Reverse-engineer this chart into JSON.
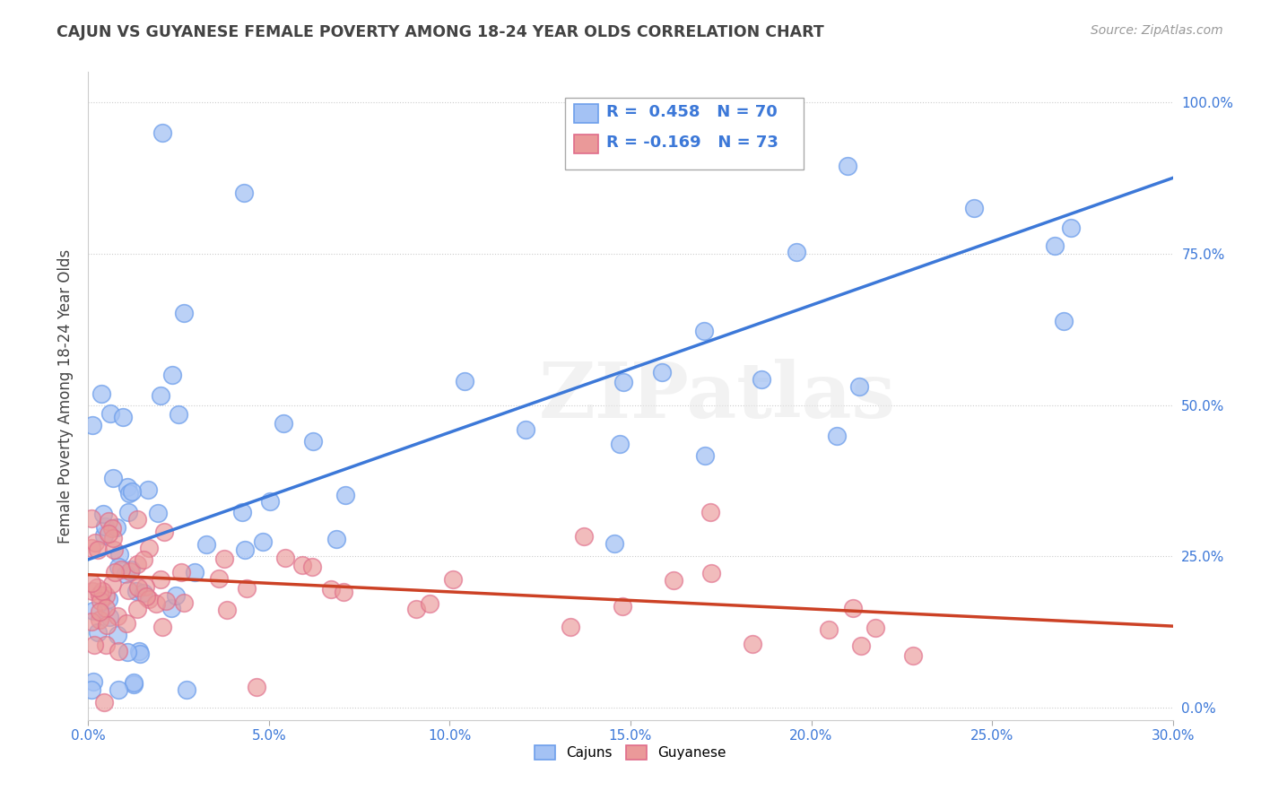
{
  "title": "CAJUN VS GUYANESE FEMALE POVERTY AMONG 18-24 YEAR OLDS CORRELATION CHART",
  "source": "Source: ZipAtlas.com",
  "ylabel": "Female Poverty Among 18-24 Year Olds",
  "right_yticks": [
    0.0,
    0.25,
    0.5,
    0.75,
    1.0
  ],
  "right_yticklabels": [
    "0.0%",
    "25.0%",
    "50.0%",
    "75.0%",
    "100.0%"
  ],
  "cajun_color": "#a4c2f4",
  "cajun_edge_color": "#6d9eeb",
  "guyanese_color": "#ea9999",
  "guyanese_edge_color": "#e06c8a",
  "cajun_line_color": "#3c78d8",
  "guyanese_line_color": "#cc4125",
  "legend_cajun": "R =  0.458   N = 70",
  "legend_guyanese": "R = -0.169   N = 73",
  "watermark": "ZIPatlas",
  "xlim": [
    0.0,
    0.3
  ],
  "ylim": [
    -0.02,
    1.05
  ],
  "xtick_color": "#3c78d8",
  "ytick_color": "#3c78d8",
  "background_color": "#ffffff",
  "grid_color": "#cccccc",
  "title_color": "#434343",
  "source_color": "#999999"
}
